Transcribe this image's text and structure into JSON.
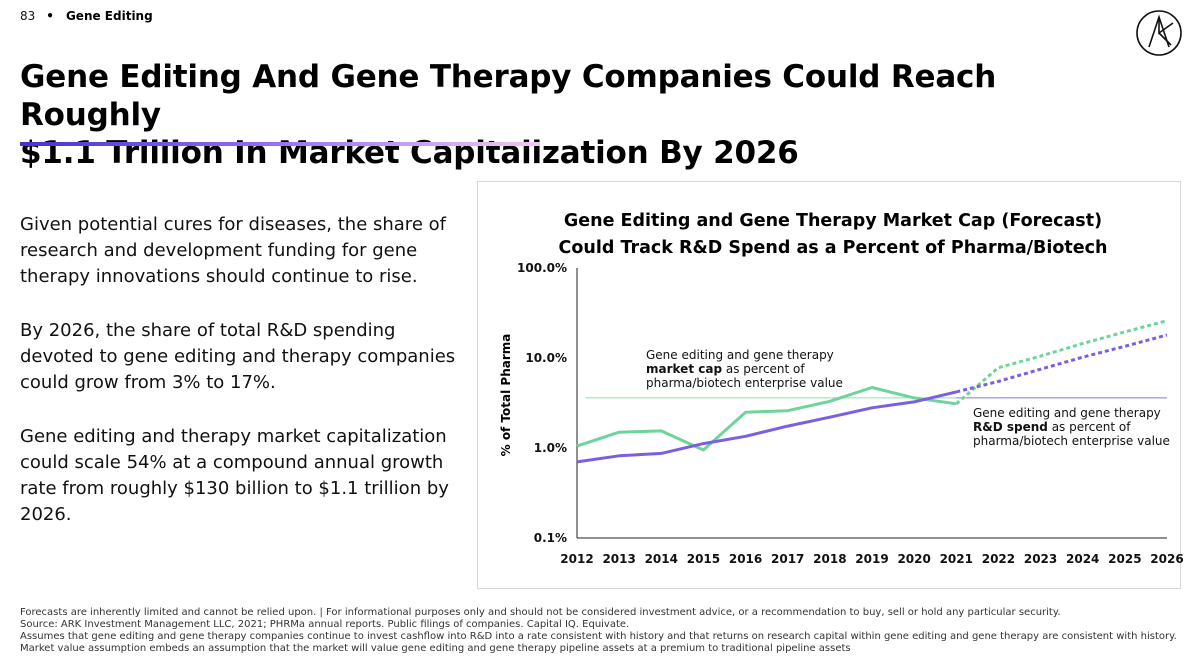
{
  "header": {
    "page_number": "83",
    "separator": "•",
    "section": "Gene Editing"
  },
  "title": {
    "line1": "Gene Editing And Gene Therapy Companies Could Reach Roughly",
    "line2": "$1.1 Trillion In Market Capitalization By 2026"
  },
  "body": {
    "p1": "Given potential cures for diseases, the share of research and development funding for gene therapy innovations should continue to rise.",
    "p2": "By 2026, the share of total R&D spending devoted to gene editing and therapy companies could grow from 3% to 17%.",
    "p3": "Gene editing and therapy market capitalization could scale 54% at a compound annual growth rate from roughly $130 billion to $1.1 trillion by 2026."
  },
  "annotations": {
    "market_cap": {
      "pre": "Gene editing and gene therapy",
      "bold": "market cap",
      "post": "as percent of",
      "line3": "pharma/biotech enterprise value"
    },
    "rd_spend": {
      "pre": "Gene editing and gene therapy",
      "bold": "R&D spend",
      "post": "as percent of",
      "line3": "pharma/biotech enterprise value"
    }
  },
  "footer": {
    "line1": "Forecasts are inherently limited and cannot be relied upon. | For informational purposes only and should not be considered investment advice, or a recommendation to buy, sell or hold any particular security.",
    "line2": "Source: ARK Investment Management LLC, 2021; PHRMa annual reports. Public filings of companies. Capital IQ. Equivate.",
    "line3": "Assumes that gene editing and gene therapy companies continue to invest cashflow into R&D into a rate consistent with history and that returns on research capital within gene editing and gene therapy are consistent with history. Market value assumption embeds an assumption that the market will value gene editing and gene therapy pipeline assets at a premium to traditional pipeline assets"
  },
  "colors": {
    "market_cap": "#6fd39a",
    "rd_spend": "#7a5fe0",
    "accent": "#4a2fd0"
  },
  "chart_data": {
    "type": "line",
    "title_line1": "Gene Editing and Gene Therapy Market Cap (Forecast)",
    "title_line2": "Could Track R&D Spend as a Percent of Pharma/Biotech",
    "xlabel": "",
    "ylabel": "% of Total Pharma",
    "y_scale": "log",
    "ylim": [
      0.1,
      100
    ],
    "y_ticks": [
      0.1,
      1,
      10,
      100
    ],
    "y_tick_labels": [
      "0.1%",
      "1.0%",
      "10.0%",
      "100.0%"
    ],
    "x": [
      2012,
      2013,
      2014,
      2015,
      2016,
      2017,
      2018,
      2019,
      2020,
      2021,
      2022,
      2023,
      2024,
      2025,
      2026
    ],
    "x_labels": [
      "2012",
      "2013",
      "2014",
      "2015",
      "2016",
      "2017",
      "2018",
      "2019",
      "2020",
      "2021",
      "2022",
      "2023",
      "2024",
      "2025",
      "2026"
    ],
    "forecast_start": 2021,
    "reference_level": 3.6,
    "series": [
      {
        "id": "market_cap",
        "values": [
          1.05,
          1.5,
          1.55,
          0.95,
          2.5,
          2.6,
          3.3,
          4.7,
          3.6,
          3.1,
          7.8,
          10.5,
          14.5,
          19.5,
          26.0
        ]
      },
      {
        "id": "rd_spend",
        "values": [
          0.7,
          0.82,
          0.87,
          1.12,
          1.35,
          1.75,
          2.2,
          2.8,
          3.25,
          4.2,
          5.5,
          7.5,
          10.2,
          13.5,
          18.0
        ]
      }
    ]
  }
}
